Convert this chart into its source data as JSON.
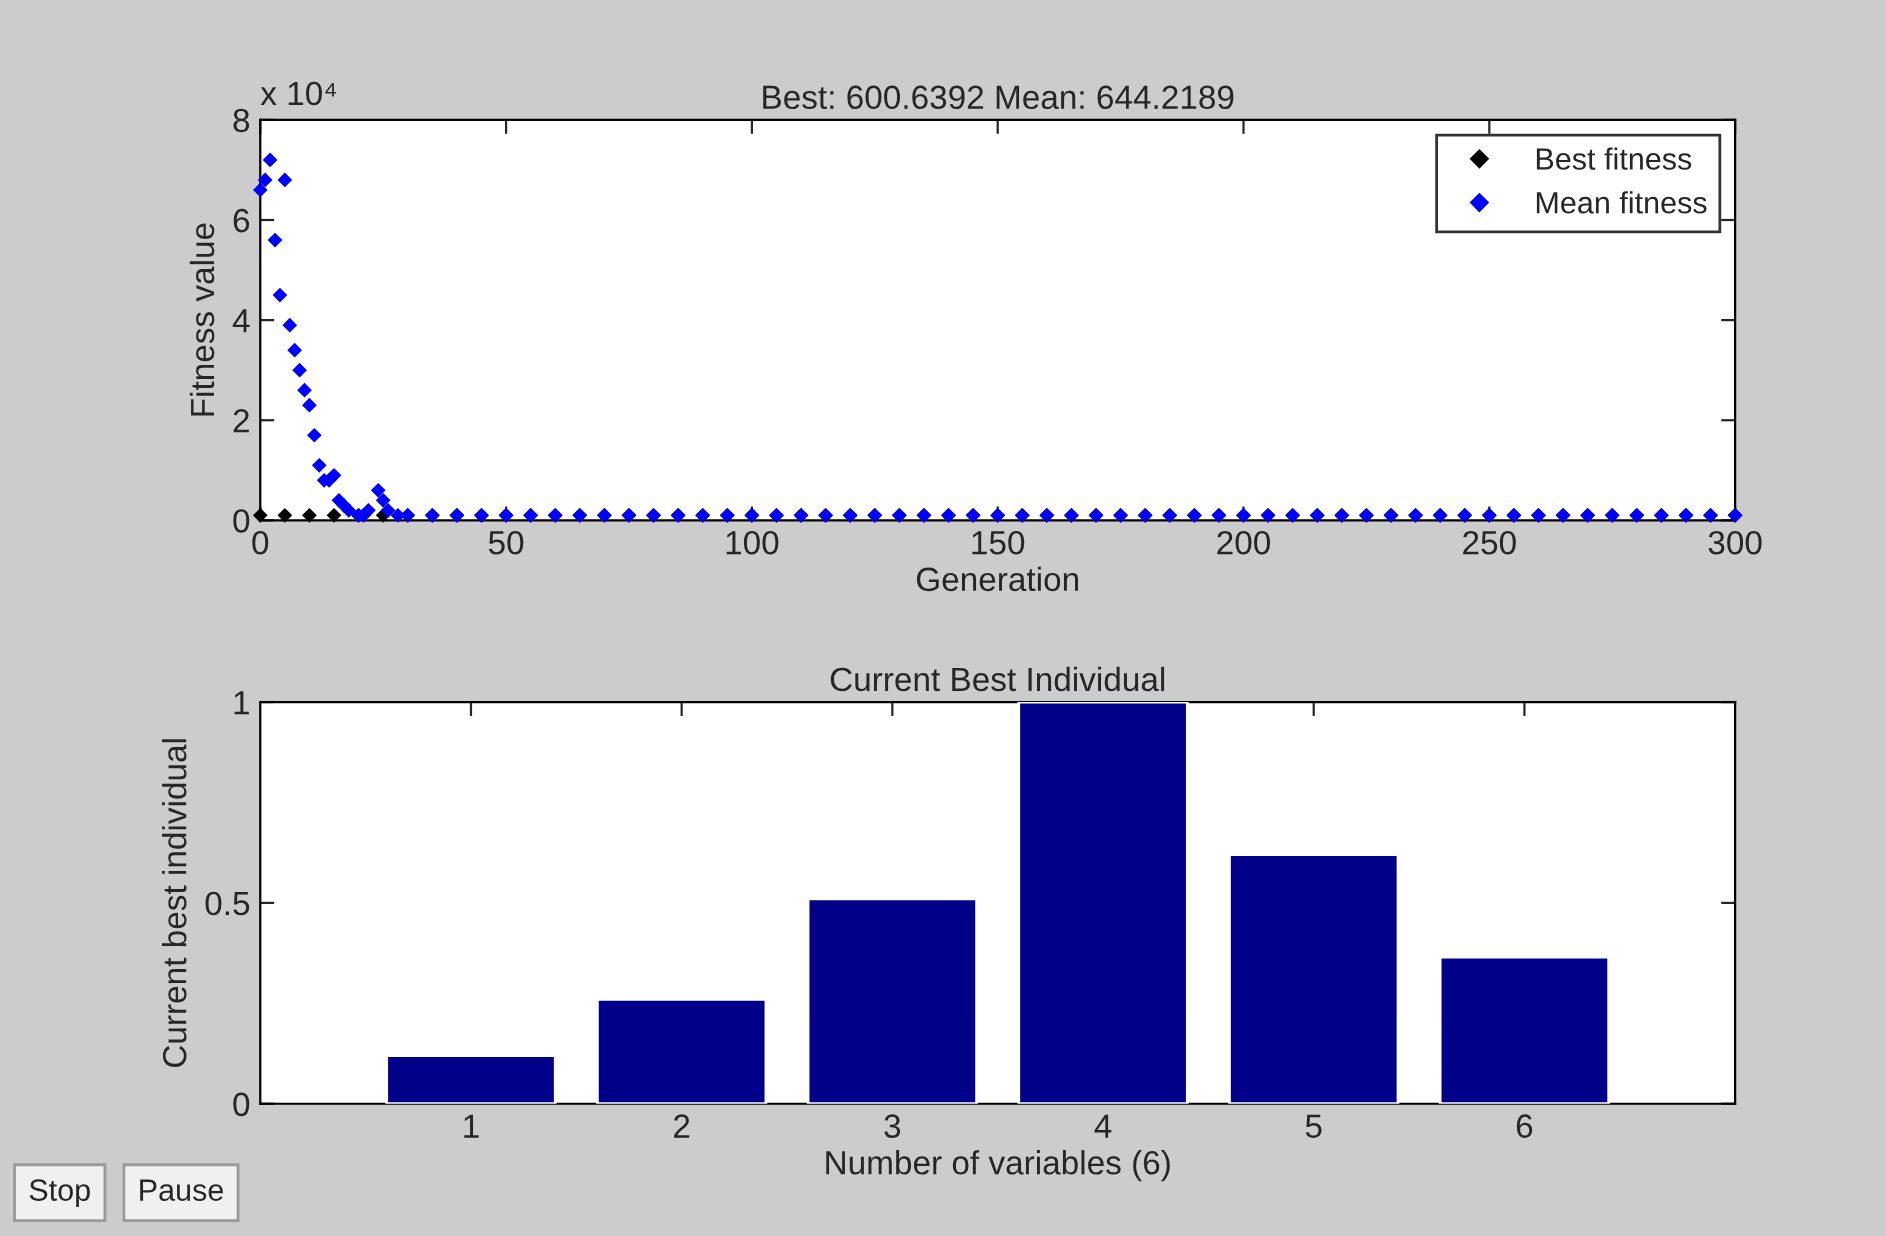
{
  "chart_data": [
    {
      "type": "scatter",
      "title": "Best: 600.6392 Mean: 644.2189",
      "xlabel": "Generation",
      "ylabel": "Fitness value",
      "xlim": [
        0,
        300
      ],
      "xticks": [
        0,
        50,
        100,
        150,
        200,
        250,
        300
      ],
      "ylim": [
        0,
        8
      ],
      "yticks": [
        0,
        2,
        4,
        6,
        8
      ],
      "annotations": [
        "x 10⁴"
      ],
      "legend": "top right",
      "marker": "diamond",
      "grid": false,
      "series": [
        {
          "name": "Best fitness",
          "color": "#000000",
          "x": [
            0,
            5,
            10,
            15,
            20,
            25,
            30,
            35,
            40,
            45,
            50,
            55,
            60,
            65,
            70,
            75,
            80,
            85,
            90,
            95,
            100,
            105,
            110,
            115,
            120,
            125,
            130,
            135,
            140,
            145,
            150,
            155,
            160,
            165,
            170,
            175,
            180,
            185,
            190,
            195,
            200,
            205,
            210,
            215,
            220,
            225,
            230,
            235,
            240,
            245,
            250,
            255,
            260,
            265,
            270,
            275,
            280,
            285,
            290,
            295,
            300
          ],
          "values": [
            0.1,
            0.1,
            0.1,
            0.1,
            0.1,
            0.1,
            0.1,
            0.1,
            0.1,
            0.1,
            0.1,
            0.1,
            0.1,
            0.1,
            0.1,
            0.1,
            0.1,
            0.1,
            0.1,
            0.1,
            0.1,
            0.1,
            0.1,
            0.1,
            0.1,
            0.1,
            0.1,
            0.1,
            0.1,
            0.1,
            0.1,
            0.1,
            0.1,
            0.1,
            0.1,
            0.1,
            0.1,
            0.1,
            0.1,
            0.1,
            0.1,
            0.1,
            0.1,
            0.1,
            0.1,
            0.1,
            0.1,
            0.1,
            0.1,
            0.1,
            0.1,
            0.1,
            0.1,
            0.1,
            0.1,
            0.1,
            0.1,
            0.1,
            0.1,
            0.1,
            0.1
          ]
        },
        {
          "name": "Mean fitness",
          "color": "#0000ff",
          "x": [
            0,
            1,
            2,
            3,
            4,
            5,
            6,
            7,
            8,
            9,
            10,
            11,
            12,
            13,
            14,
            15,
            16,
            17,
            18,
            20,
            21,
            22,
            24,
            25,
            26,
            28,
            30,
            35,
            40,
            45,
            50,
            55,
            60,
            65,
            70,
            75,
            80,
            85,
            90,
            95,
            100,
            105,
            110,
            115,
            120,
            125,
            130,
            135,
            140,
            145,
            150,
            155,
            160,
            165,
            170,
            175,
            180,
            185,
            190,
            195,
            200,
            205,
            210,
            215,
            220,
            225,
            230,
            235,
            240,
            245,
            250,
            255,
            260,
            265,
            270,
            275,
            280,
            285,
            290,
            295,
            300
          ],
          "values": [
            6.6,
            6.8,
            7.2,
            5.6,
            4.5,
            6.8,
            3.9,
            3.4,
            3.0,
            2.6,
            2.3,
            1.7,
            1.1,
            0.8,
            0.8,
            0.9,
            0.4,
            0.3,
            0.2,
            0.1,
            0.1,
            0.2,
            0.6,
            0.4,
            0.2,
            0.1,
            0.1,
            0.1,
            0.1,
            0.1,
            0.1,
            0.1,
            0.1,
            0.1,
            0.1,
            0.1,
            0.1,
            0.1,
            0.1,
            0.1,
            0.1,
            0.1,
            0.1,
            0.1,
            0.1,
            0.1,
            0.1,
            0.1,
            0.1,
            0.1,
            0.1,
            0.1,
            0.1,
            0.1,
            0.1,
            0.1,
            0.1,
            0.1,
            0.1,
            0.1,
            0.1,
            0.1,
            0.1,
            0.1,
            0.1,
            0.1,
            0.1,
            0.1,
            0.1,
            0.1,
            0.1,
            0.1,
            0.1,
            0.1,
            0.1,
            0.1,
            0.1,
            0.1,
            0.1,
            0.1,
            0.1
          ]
        }
      ]
    },
    {
      "type": "bar",
      "title": "Current Best Individual",
      "xlabel": "Number of variables (6)",
      "ylabel": "Current best individual",
      "categories": [
        "1",
        "2",
        "3",
        "4",
        "5",
        "6"
      ],
      "values": [
        0.12,
        0.26,
        0.51,
        1.0,
        0.62,
        0.365
      ],
      "color": "#000088",
      "ylim": [
        0,
        1
      ],
      "yticks": [
        0,
        0.5,
        1
      ],
      "grid": false,
      "annotations": [
        "Stop",
        "Pause"
      ]
    }
  ]
}
